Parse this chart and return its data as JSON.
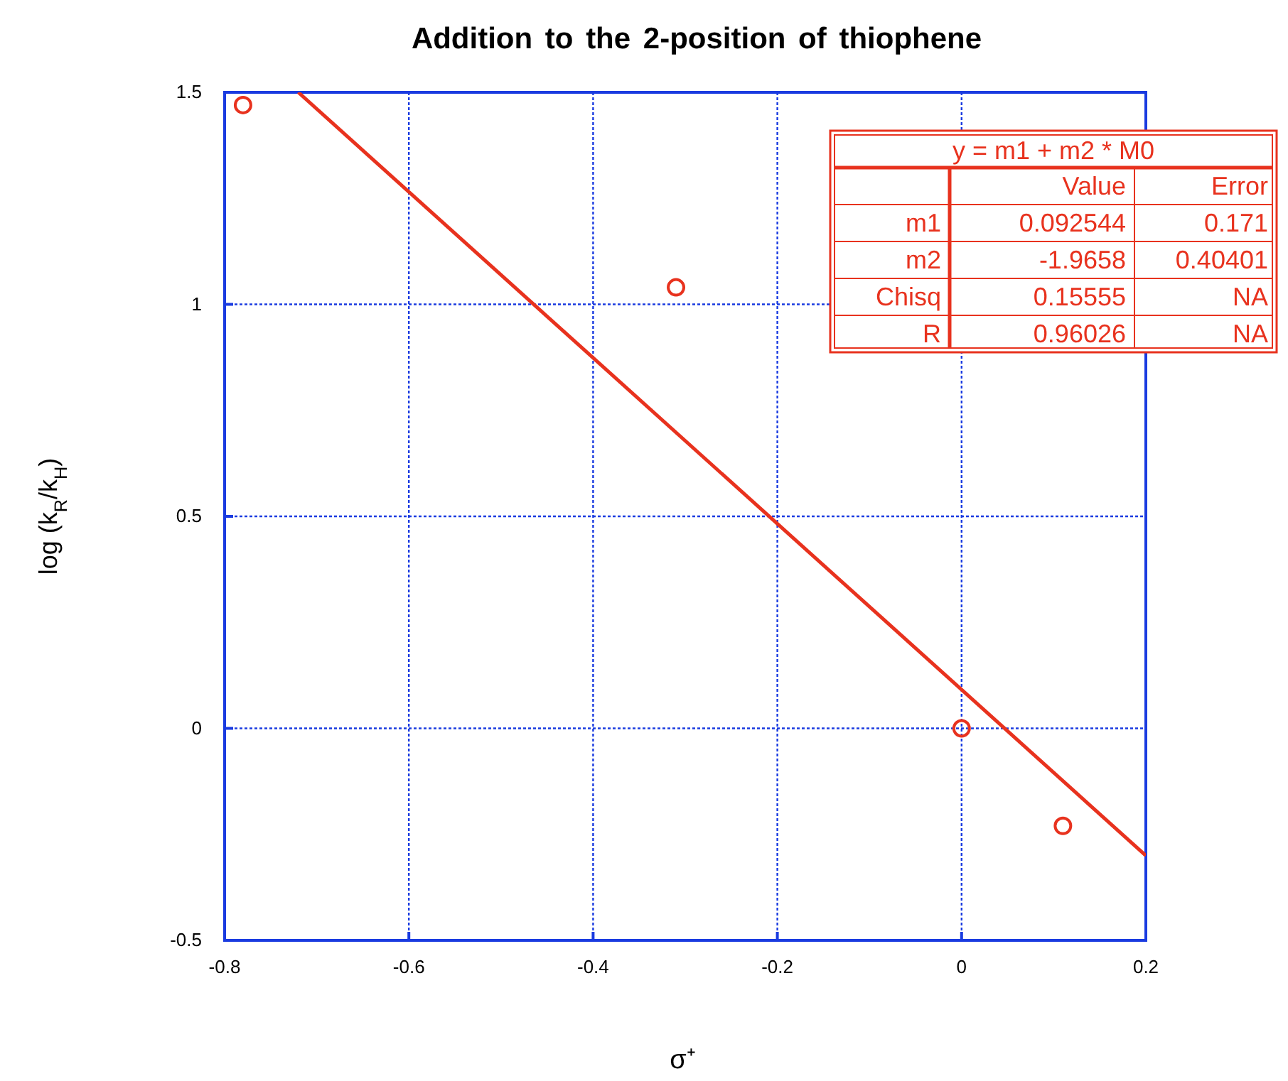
{
  "chart_data": {
    "type": "scatter",
    "title": "Addition to the 2-position of thiophene",
    "xlabel": "σ⁺",
    "ylabel": "log (k$_{R}$/k$_{H}$)",
    "xlim": [
      -0.8,
      0.2
    ],
    "xticks": [
      -0.8,
      -0.6,
      -0.4,
      -0.2,
      0,
      0.2
    ],
    "ylim": [
      -0.5,
      1.5
    ],
    "yticks": [
      -0.5,
      0,
      0.5,
      1,
      1.5
    ],
    "grid": true,
    "series": [
      {
        "marker": "circle",
        "color": "#e8321e",
        "x": [
          -0.78,
          -0.31,
          0,
          0.11
        ],
        "values": [
          1.47,
          1.04,
          0,
          -0.23
        ]
      },
      {
        "type": "line",
        "color": "#e8321e",
        "x": [
          -0.72,
          0.2
        ],
        "values": [
          1.5,
          -0.3
        ]
      }
    ],
    "annotations": [
      "y = m1 + m2 * M0",
      "Value",
      "Error",
      "m1",
      "0.092544",
      "0.171",
      "m2",
      "-1.9658",
      "0.40401",
      "Chisq",
      "0.15555",
      "NA",
      "R",
      "0.96026",
      "NA"
    ]
  }
}
